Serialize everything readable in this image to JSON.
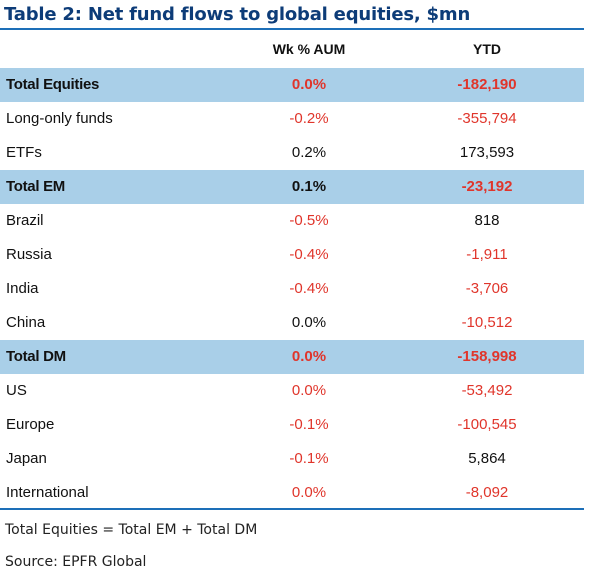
{
  "title": "Table 2: Net fund flows to global equities, $mn",
  "colors": {
    "title": "#0d3c78",
    "rule": "#1d6fb8",
    "total_row_bg": "#a9cfe8",
    "negative": "#e0352b",
    "positive": "#111111"
  },
  "chart_data": {
    "type": "table",
    "title": "Table 2: Net fund flows to global equities, $mn",
    "columns": [
      "Wk % AUM",
      "YTD"
    ],
    "rows": [
      {
        "name": "Total Equities",
        "wk": "0.0%",
        "ytd": "-182,190",
        "total": true,
        "wk_neg": true,
        "ytd_neg": true
      },
      {
        "name": "Long-only funds",
        "wk": "-0.2%",
        "ytd": "-355,794",
        "total": false,
        "wk_neg": true,
        "ytd_neg": true
      },
      {
        "name": "ETFs",
        "wk": "0.2%",
        "ytd": "173,593",
        "total": false,
        "wk_neg": false,
        "ytd_neg": false
      },
      {
        "name": "Total EM",
        "wk": "0.1%",
        "ytd": "-23,192",
        "total": true,
        "wk_neg": false,
        "ytd_neg": true
      },
      {
        "name": "Brazil",
        "wk": "-0.5%",
        "ytd": "818",
        "total": false,
        "wk_neg": true,
        "ytd_neg": false
      },
      {
        "name": "Russia",
        "wk": "-0.4%",
        "ytd": "-1,911",
        "total": false,
        "wk_neg": true,
        "ytd_neg": true
      },
      {
        "name": "India",
        "wk": "-0.4%",
        "ytd": "-3,706",
        "total": false,
        "wk_neg": true,
        "ytd_neg": true
      },
      {
        "name": "China",
        "wk": "0.0%",
        "ytd": "-10,512",
        "total": false,
        "wk_neg": false,
        "ytd_neg": true
      },
      {
        "name": "Total DM",
        "wk": "0.0%",
        "ytd": "-158,998",
        "total": true,
        "wk_neg": true,
        "ytd_neg": true
      },
      {
        "name": "US",
        "wk": "0.0%",
        "ytd": "-53,492",
        "total": false,
        "wk_neg": true,
        "ytd_neg": true
      },
      {
        "name": "Europe",
        "wk": "-0.1%",
        "ytd": "-100,545",
        "total": false,
        "wk_neg": true,
        "ytd_neg": true
      },
      {
        "name": "Japan",
        "wk": "-0.1%",
        "ytd": "5,864",
        "total": false,
        "wk_neg": true,
        "ytd_neg": false
      },
      {
        "name": "International",
        "wk": "0.0%",
        "ytd": "-8,092",
        "total": false,
        "wk_neg": true,
        "ytd_neg": true
      }
    ]
  },
  "footnotes": {
    "note": "Total Equities = Total EM + Total DM",
    "source": "Source: EPFR Global"
  }
}
